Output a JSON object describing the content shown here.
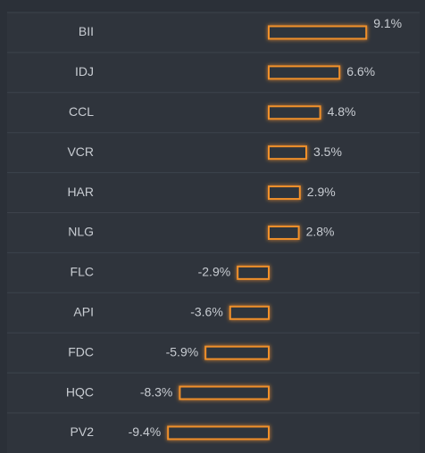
{
  "chart_data": {
    "type": "bar",
    "orientation": "horizontal",
    "categories": [
      "BII",
      "IDJ",
      "CCL",
      "VCR",
      "HAR",
      "NLG",
      "FLC",
      "API",
      "FDC",
      "HQC",
      "PV2"
    ],
    "values": [
      9.1,
      6.6,
      4.8,
      3.5,
      2.9,
      2.8,
      -2.9,
      -3.6,
      -5.9,
      -8.3,
      -9.4
    ],
    "value_labels": [
      "9.1%",
      "6.6%",
      "4.8%",
      "3.5%",
      "2.9%",
      "2.8%",
      "-2.9%",
      "-3.6%",
      "-5.9%",
      "-8.3%",
      "-9.4%"
    ],
    "color": "#f0902a"
  }
}
